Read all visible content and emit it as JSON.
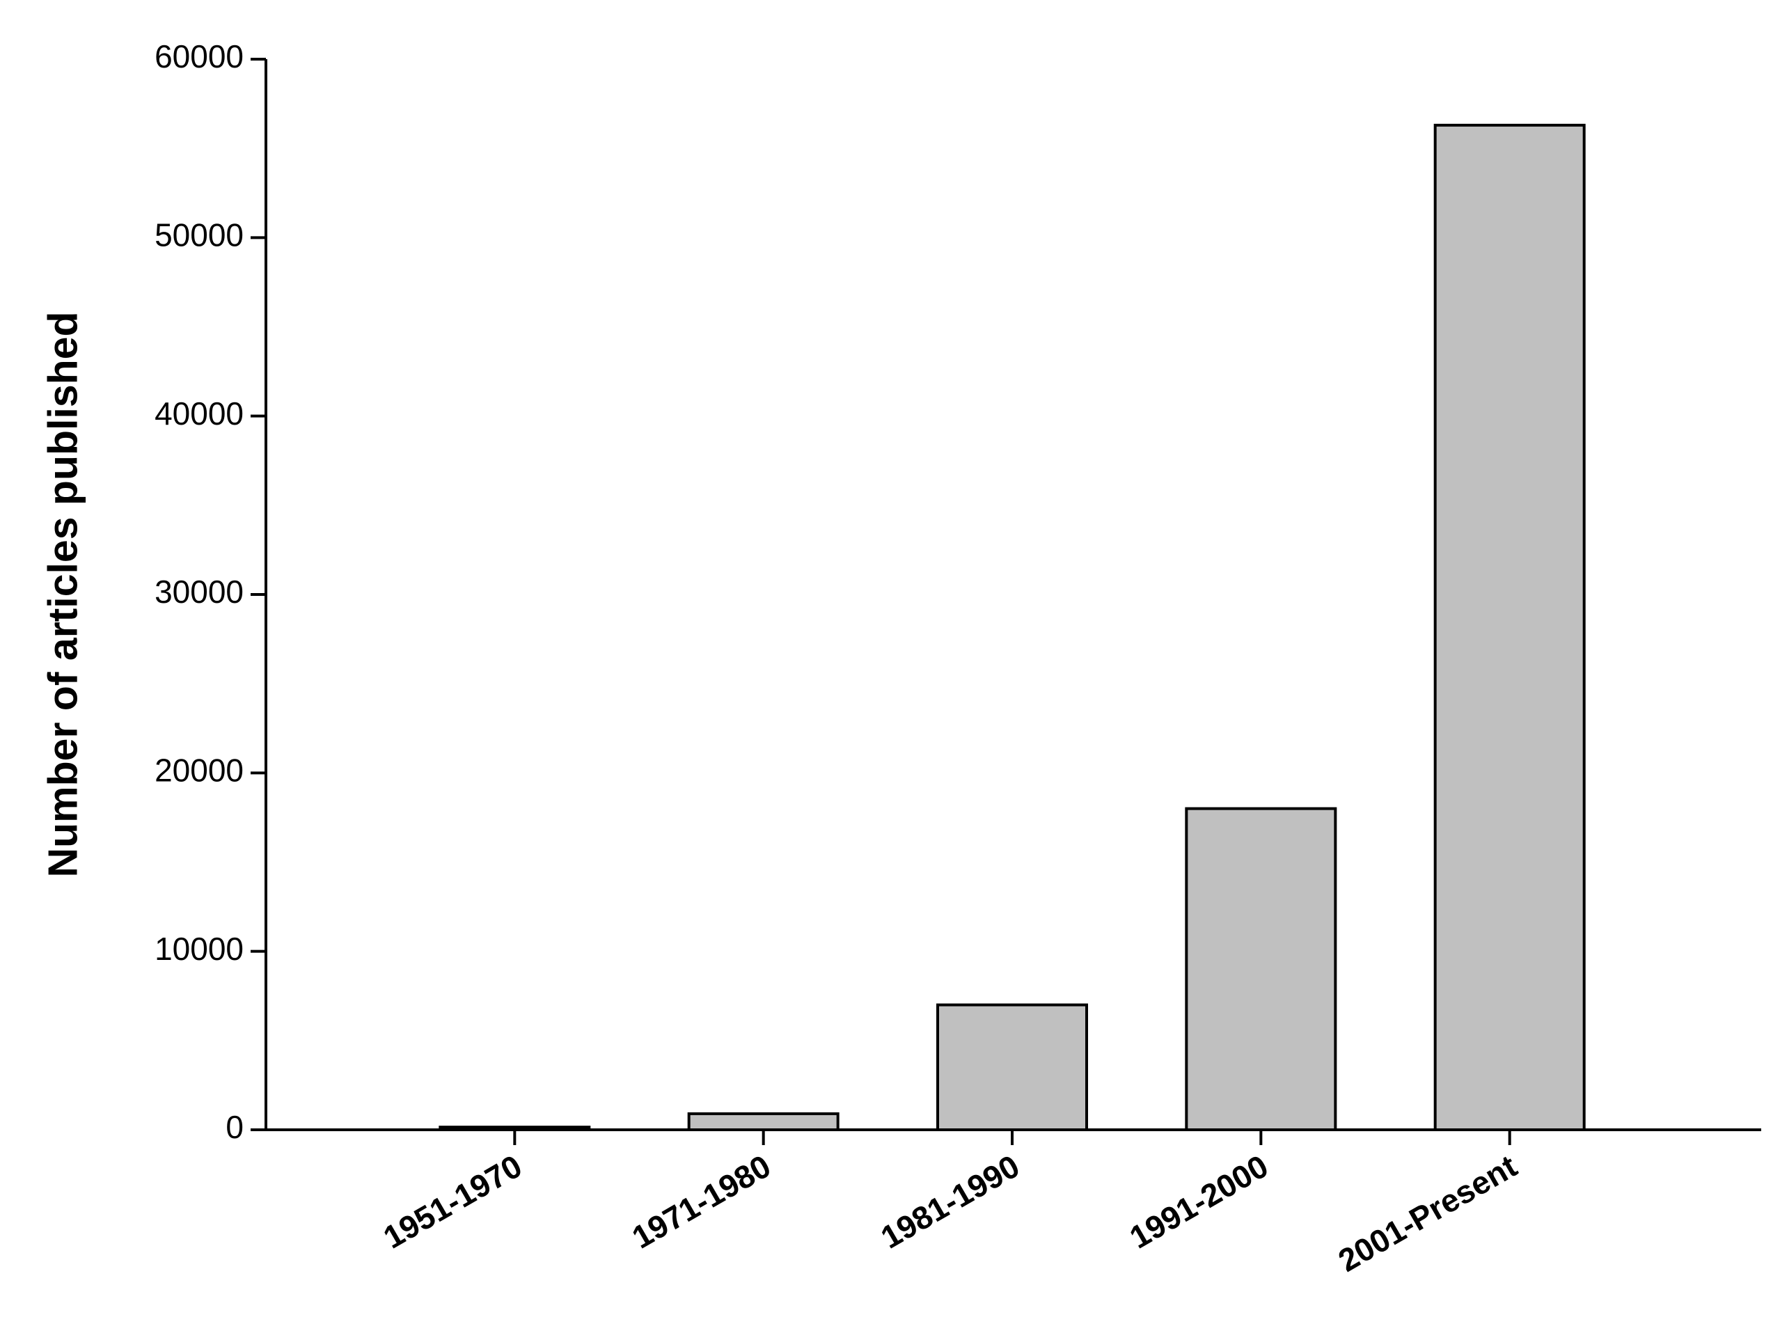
{
  "chart_data": {
    "type": "bar",
    "y_axis_label": "Number of articles published",
    "categories": [
      "1951-1970",
      "1971-1980",
      "1981-1990",
      "1991-2000",
      "2001-Present"
    ],
    "values": [
      150,
      900,
      7000,
      18000,
      56300
    ],
    "color": "#c0c0c0",
    "ylim": [
      0,
      60000
    ],
    "yticks": [
      0,
      10000,
      20000,
      30000,
      40000,
      50000,
      60000
    ],
    "grid": false
  }
}
